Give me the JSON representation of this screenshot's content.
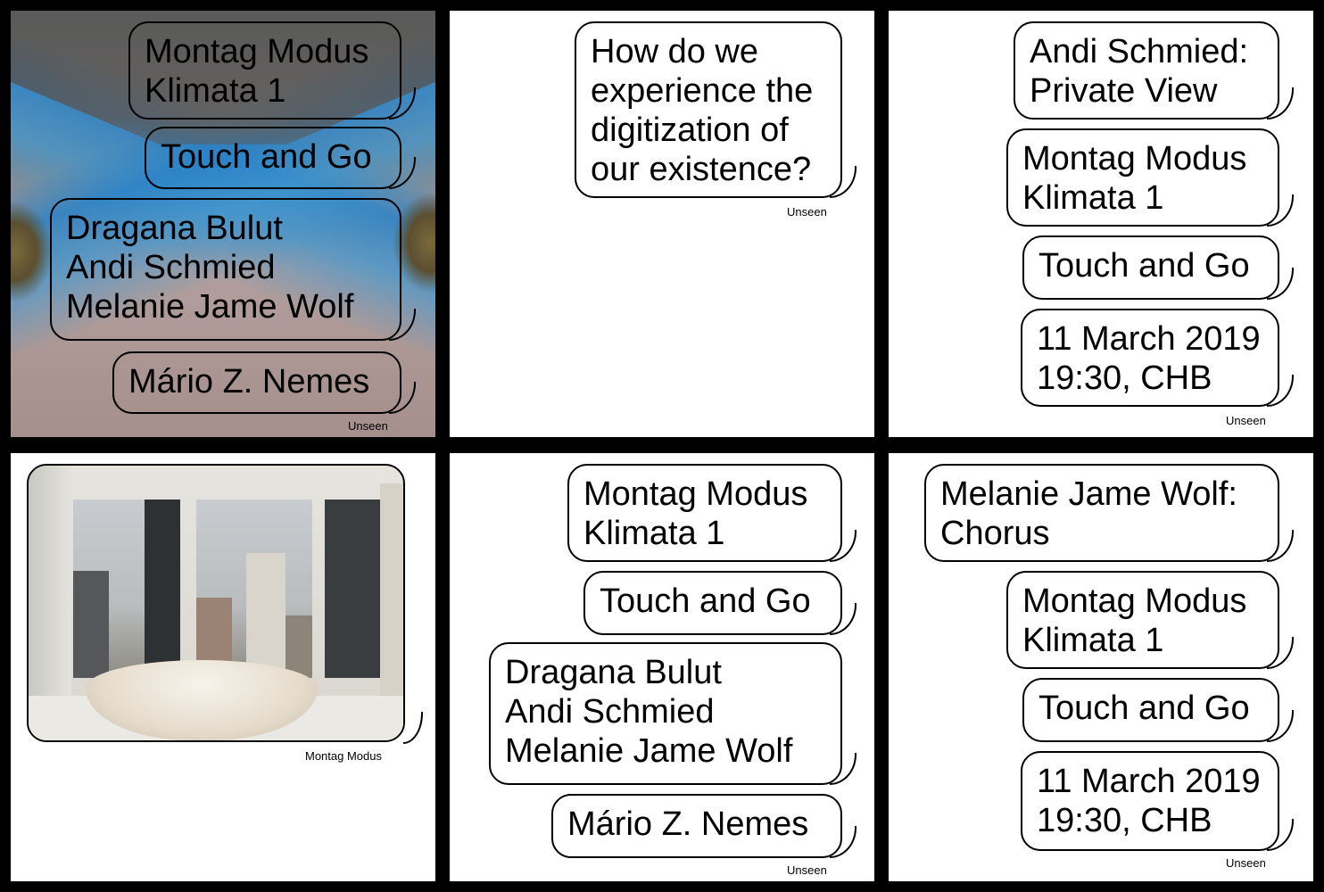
{
  "panels": {
    "p1": {
      "bubbles": [
        "Montag Modus\nKlimata 1",
        "Touch and Go",
        "Dragana Bulut\nAndi Schmied\nMelanie Jame Wolf",
        "Mário Z. Nemes"
      ],
      "tag": "Unseen"
    },
    "p2": {
      "bubbles": [
        "How do we\nexperience the\ndigitization of\nour existence?"
      ],
      "tag": "Unseen"
    },
    "p3": {
      "bubbles": [
        "Andi Schmied:\nPrivate View",
        "Montag Modus\nKlimata 1",
        "Touch and Go",
        "11 March 2019\n19:30, CHB"
      ],
      "tag": "Unseen"
    },
    "p4": {
      "tag": "Montag Modus"
    },
    "p5": {
      "bubbles": [
        "Montag Modus\nKlimata 1",
        "Touch and Go",
        "Dragana Bulut\nAndi Schmied\nMelanie Jame Wolf",
        "Mário Z. Nemes"
      ],
      "tag": "Unseen"
    },
    "p6": {
      "bubbles": [
        "Melanie Jame Wolf:\nChorus",
        "Montag Modus\nKlimata 1",
        "Touch and Go",
        "11 March 2019\n19:30, CHB"
      ],
      "tag": "Unseen"
    }
  }
}
